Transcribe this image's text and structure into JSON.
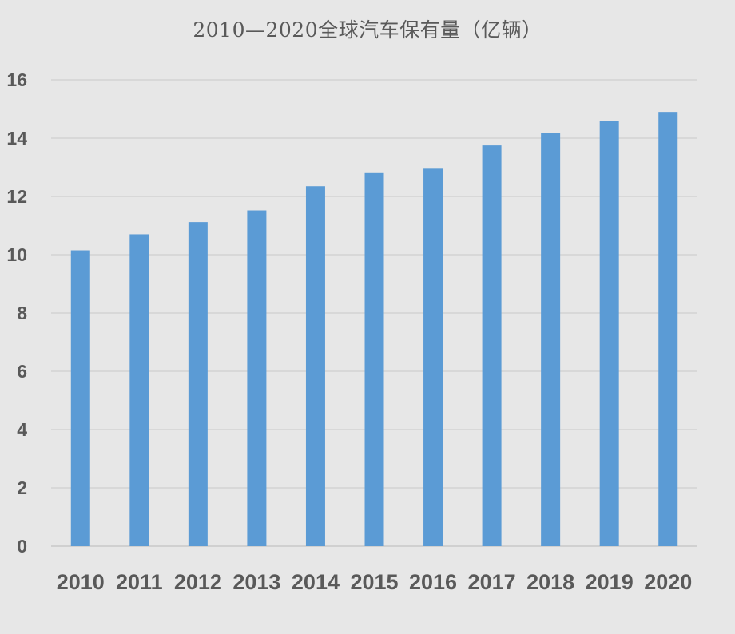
{
  "chart_data": {
    "type": "bar",
    "title": "2010—2020全球汽车保有量（亿辆）",
    "xlabel": "",
    "ylabel": "",
    "categories": [
      "2010",
      "2011",
      "2012",
      "2013",
      "2014",
      "2015",
      "2016",
      "2017",
      "2018",
      "2019",
      "2020"
    ],
    "values": [
      10.15,
      10.7,
      11.12,
      11.52,
      12.35,
      12.8,
      12.95,
      13.75,
      14.17,
      14.6,
      14.9
    ],
    "ylim": [
      0,
      16
    ],
    "yticks": [
      0,
      2,
      4,
      6,
      8,
      10,
      12,
      14,
      16
    ],
    "grid": true,
    "legend": "none",
    "colors": {
      "bar": "#5b9bd5",
      "background": "#e7e7e7",
      "grid": "#d4d4d4",
      "text": "#595959"
    }
  }
}
